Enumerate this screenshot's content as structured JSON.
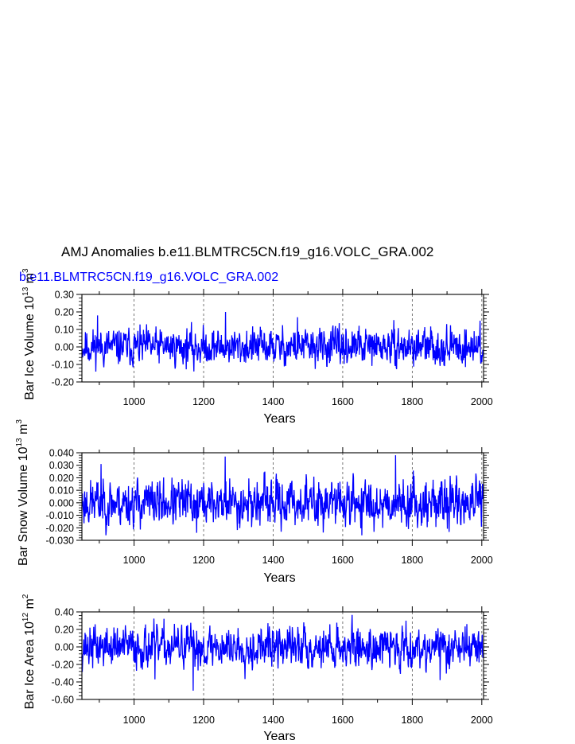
{
  "title": "AMJ Anomalies b.e11.BLMTRC5CN.f19_g16.VOLC_GRA.002",
  "subtitle": "b.e11.BLMTRC5CN.f19_g16.VOLC_GRA.002",
  "colors": {
    "series": "#0000ff",
    "subtitle": "#0000ff",
    "axis": "#000000",
    "grid": "#555555"
  },
  "chart_data": [
    {
      "type": "line",
      "ylabel": "Bar Ice Volume 10",
      "ylabel_exp": "13",
      "ylabel_unit": " m",
      "ylabel_unit_exp": "3",
      "xlabel": "Years",
      "xlim": [
        850,
        2005
      ],
      "ylim": [
        -0.2,
        0.3
      ],
      "x_ticks": [
        1000,
        1200,
        1400,
        1600,
        1800,
        2000
      ],
      "x_tick_labels": [
        "1000",
        "1200",
        "1400",
        "1600",
        "1800",
        "2000"
      ],
      "y_ticks": [
        -0.2,
        -0.1,
        0.0,
        0.1,
        0.2,
        0.3
      ],
      "y_tick_labels": [
        "-0.20",
        "-0.10",
        "0.00",
        "0.10",
        "0.20",
        "0.30"
      ],
      "grid": "vertical-dashed",
      "x_start": 850,
      "x_step": 1,
      "amplitude": 0.048,
      "extrema": [
        {
          "x": 895,
          "y": 0.18
        },
        {
          "x": 1172,
          "y": -0.14
        },
        {
          "x": 1263,
          "y": 0.2
        },
        {
          "x": 1470,
          "y": 0.17
        },
        {
          "x": 1995,
          "y": 0.15
        }
      ],
      "seed": 11
    },
    {
      "type": "line",
      "ylabel": "Bar Snow Volume 10",
      "ylabel_exp": "13",
      "ylabel_unit": " m",
      "ylabel_unit_exp": "3",
      "xlabel": "Years",
      "xlim": [
        850,
        2005
      ],
      "ylim": [
        -0.03,
        0.04
      ],
      "x_ticks": [
        1000,
        1200,
        1400,
        1600,
        1800,
        2000
      ],
      "x_tick_labels": [
        "1000",
        "1200",
        "1400",
        "1600",
        "1800",
        "2000"
      ],
      "y_ticks": [
        -0.03,
        -0.02,
        -0.01,
        0.0,
        0.01,
        0.02,
        0.03,
        0.04
      ],
      "y_tick_labels": [
        "-0.030",
        "-0.020",
        "-0.010",
        "0.000",
        "0.010",
        "0.020",
        "0.030",
        "0.040"
      ],
      "grid": "vertical-dashed",
      "x_start": 850,
      "x_step": 1,
      "amplitude": 0.0085,
      "extrema": [
        {
          "x": 905,
          "y": 0.031
        },
        {
          "x": 1262,
          "y": 0.037
        },
        {
          "x": 1752,
          "y": 0.038
        },
        {
          "x": 1655,
          "y": -0.026
        },
        {
          "x": 1180,
          "y": -0.024
        }
      ],
      "seed": 23
    },
    {
      "type": "line",
      "ylabel": "Bar Ice Area 10",
      "ylabel_exp": "12",
      "ylabel_unit": " m",
      "ylabel_unit_exp": "2",
      "xlabel": "Years",
      "xlim": [
        850,
        2005
      ],
      "ylim": [
        -0.6,
        0.4
      ],
      "x_ticks": [
        1000,
        1200,
        1400,
        1600,
        1800,
        2000
      ],
      "x_tick_labels": [
        "1000",
        "1200",
        "1400",
        "1600",
        "1800",
        "2000"
      ],
      "y_ticks": [
        -0.6,
        -0.4,
        -0.2,
        0.0,
        0.2,
        0.4
      ],
      "y_tick_labels": [
        "-0.60",
        "-0.40",
        "-0.20",
        "0.00",
        "0.20",
        "0.40"
      ],
      "grid": "vertical-dashed",
      "x_start": 850,
      "x_step": 1,
      "amplitude": 0.11,
      "extrema": [
        {
          "x": 1170,
          "y": -0.5
        },
        {
          "x": 1880,
          "y": -0.38
        },
        {
          "x": 1488,
          "y": 0.28
        },
        {
          "x": 1782,
          "y": 0.3
        },
        {
          "x": 1060,
          "y": -0.37
        }
      ],
      "seed": 37
    }
  ]
}
